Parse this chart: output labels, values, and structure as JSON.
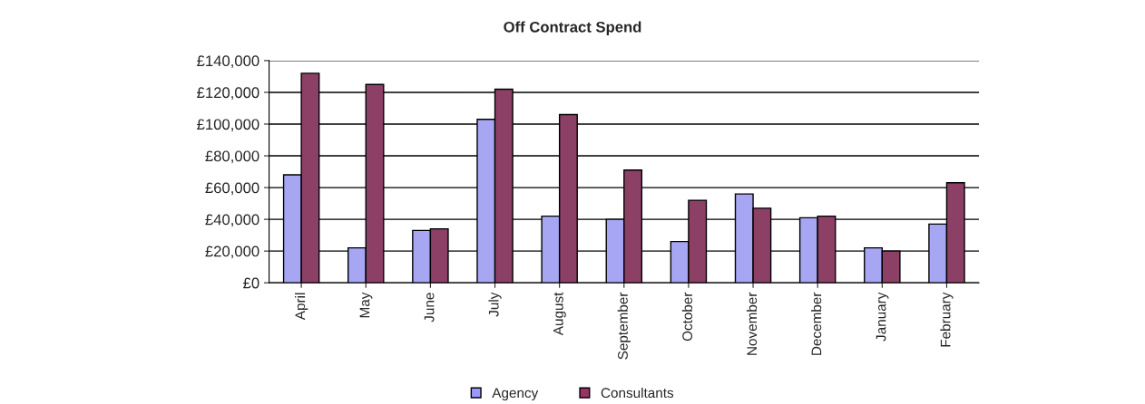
{
  "chart_data": {
    "type": "bar",
    "title": "Off Contract Spend",
    "categories": [
      "April",
      "May",
      "June",
      "July",
      "August",
      "September",
      "October",
      "November",
      "December",
      "January",
      "February"
    ],
    "series": [
      {
        "name": "Agency",
        "color": "#9999ff",
        "values": [
          68000,
          22000,
          33000,
          103000,
          42000,
          40000,
          26000,
          56000,
          41000,
          22000,
          37000
        ]
      },
      {
        "name": "Consultants",
        "color": "#993366",
        "values": [
          132000,
          125000,
          34000,
          122000,
          106000,
          71000,
          52000,
          47000,
          42000,
          20000,
          63000
        ]
      }
    ],
    "ylim": [
      0,
      140000
    ],
    "yticks": [
      {
        "value": 0,
        "label": "£0"
      },
      {
        "value": 20000,
        "label": "£20,000"
      },
      {
        "value": 40000,
        "label": "£40,000"
      },
      {
        "value": 60000,
        "label": "£60,000"
      },
      {
        "value": 80000,
        "label": "£80,000"
      },
      {
        "value": 100000,
        "label": "£100,000"
      },
      {
        "value": 120000,
        "label": "£120,000"
      },
      {
        "value": 140000,
        "label": "£140,000"
      }
    ],
    "grid": "y",
    "legend": "bottom"
  }
}
